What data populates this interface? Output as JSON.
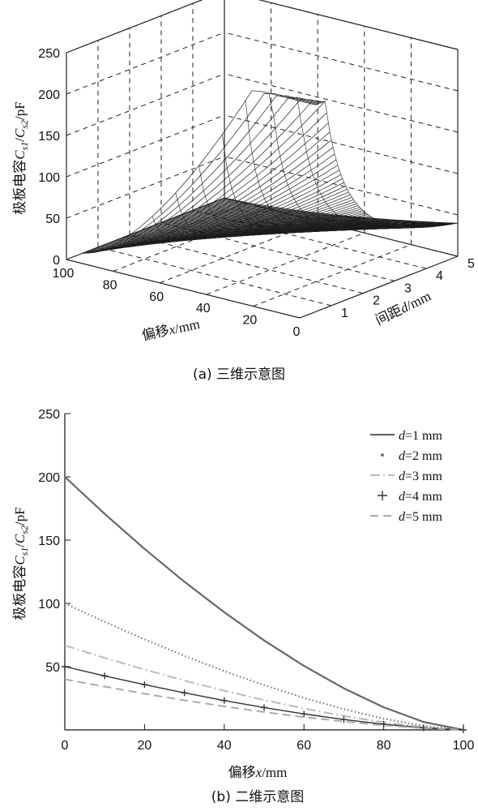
{
  "figure": {
    "caption_a": "(a) 三维示意图",
    "caption_b": "(b) 二维示意图"
  },
  "chart_data": [
    {
      "type": "surface3d",
      "ylabel_prefix": "极板电容",
      "ylabel_math": "C",
      "ylabel_sub1": "s1",
      "ylabel_sep": "/",
      "ylabel_sub2": "s2",
      "ylabel_unit": "/pF",
      "xlabel_prefix": "偏移",
      "xlabel_var": "x",
      "xlabel_unit": "/mm",
      "dlabel_prefix": "间距",
      "dlabel_var": "d",
      "dlabel_unit": "/mm",
      "z_ticks": [
        "0",
        "50",
        "100",
        "150",
        "200",
        "250"
      ],
      "x_ticks": [
        "100",
        "80",
        "60",
        "40",
        "20",
        "0"
      ],
      "d_ticks": [
        "1",
        "2",
        "3",
        "4",
        "5"
      ],
      "zlim": [
        0,
        250
      ],
      "xlim": [
        0,
        100
      ],
      "dlim": [
        0,
        5
      ],
      "grid": true,
      "formula": "C = 200 * (1 - x/100)^1.5 / d"
    },
    {
      "type": "line",
      "ylabel_prefix": "极板电容",
      "ylabel_math": "C",
      "ylabel_sub1": "s1",
      "ylabel_sep": "/",
      "ylabel_sub2": "s2",
      "ylabel_unit": "/pF",
      "xlabel_prefix": "偏移",
      "xlabel_var": "x",
      "xlabel_unit": "/mm",
      "xlim": [
        0,
        100
      ],
      "ylim": [
        0,
        250
      ],
      "x_ticks": [
        "0",
        "20",
        "40",
        "60",
        "80",
        "100"
      ],
      "y_ticks": [
        "50",
        "100",
        "150",
        "200",
        "250"
      ],
      "grid": false,
      "legend_position": "top-right",
      "x": [
        0,
        10,
        20,
        30,
        40,
        50,
        60,
        70,
        80,
        90,
        100
      ],
      "series": [
        {
          "name": "d=1 mm",
          "legend_var": "d",
          "legend_rest": "=1 mm",
          "style": "solid",
          "color": "#666666",
          "values": [
            200,
            170.8,
            143.1,
            117.1,
            93.0,
            70.7,
            50.6,
            32.9,
            17.9,
            6.3,
            0
          ]
        },
        {
          "name": "d=2 mm",
          "legend_var": "d",
          "legend_rest": "=2 mm",
          "style": "dotted",
          "color": "#777777",
          "values": [
            100,
            85.4,
            71.6,
            58.6,
            46.5,
            35.4,
            25.3,
            16.4,
            8.9,
            3.2,
            0
          ]
        },
        {
          "name": "d=3 mm",
          "legend_var": "d",
          "legend_rest": "=3 mm",
          "style": "dashdot",
          "color": "#bbbbbb",
          "values": [
            66.7,
            56.9,
            47.7,
            39.0,
            31.0,
            23.6,
            16.9,
            11.0,
            6.0,
            2.1,
            0
          ]
        },
        {
          "name": "d=4 mm",
          "legend_var": "d",
          "legend_rest": "=4 mm",
          "style": "plus",
          "color": "#333333",
          "values": [
            50,
            42.7,
            35.8,
            29.3,
            23.2,
            17.7,
            12.6,
            8.2,
            4.5,
            1.6,
            0
          ]
        },
        {
          "name": "d=5 mm",
          "legend_var": "d",
          "legend_rest": "=5 mm",
          "style": "dashed",
          "color": "#aaaaaa",
          "values": [
            40,
            34.2,
            28.6,
            23.4,
            18.6,
            14.1,
            10.1,
            6.6,
            3.6,
            1.3,
            0
          ]
        }
      ]
    }
  ]
}
